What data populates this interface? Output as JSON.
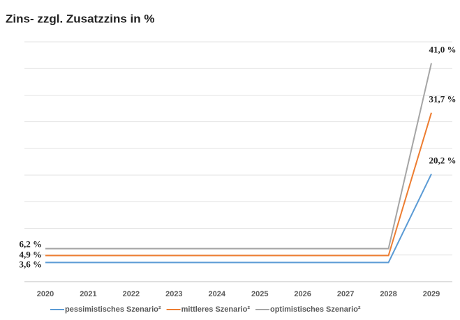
{
  "chart_data": {
    "type": "line",
    "title": "Zins- zzgl. Zusatzzins in %",
    "categories": [
      "2020",
      "2021",
      "2022",
      "2023",
      "2024",
      "2025",
      "2026",
      "2027",
      "2028",
      "2029"
    ],
    "series": [
      {
        "name": "pessimistisches Szenario²",
        "color": "#5b9bd5",
        "values": [
          3.6,
          3.6,
          3.6,
          3.6,
          3.6,
          3.6,
          3.6,
          3.6,
          3.6,
          20.2
        ],
        "value_labels": [
          "3,6 %",
          null,
          null,
          null,
          null,
          null,
          null,
          null,
          null,
          "20,2 %"
        ]
      },
      {
        "name": "mittleres Szenario²",
        "color": "#ed7d31",
        "values": [
          4.9,
          4.9,
          4.9,
          4.9,
          4.9,
          4.9,
          4.9,
          4.9,
          4.9,
          31.7
        ],
        "value_labels": [
          "4,9 %",
          null,
          null,
          null,
          null,
          null,
          null,
          null,
          null,
          "31,7 %"
        ]
      },
      {
        "name": "optimistisches Szenario²",
        "color": "#a5a5a5",
        "values": [
          6.2,
          6.2,
          6.2,
          6.2,
          6.2,
          6.2,
          6.2,
          6.2,
          6.2,
          41.0
        ],
        "value_labels": [
          "6,2 %",
          null,
          null,
          null,
          null,
          null,
          null,
          null,
          null,
          "41,0 %"
        ]
      }
    ],
    "ylim": [
      0,
      45
    ],
    "yticks": [
      0,
      5,
      10,
      15,
      20,
      25,
      30,
      35,
      40,
      45
    ],
    "grid": true
  }
}
